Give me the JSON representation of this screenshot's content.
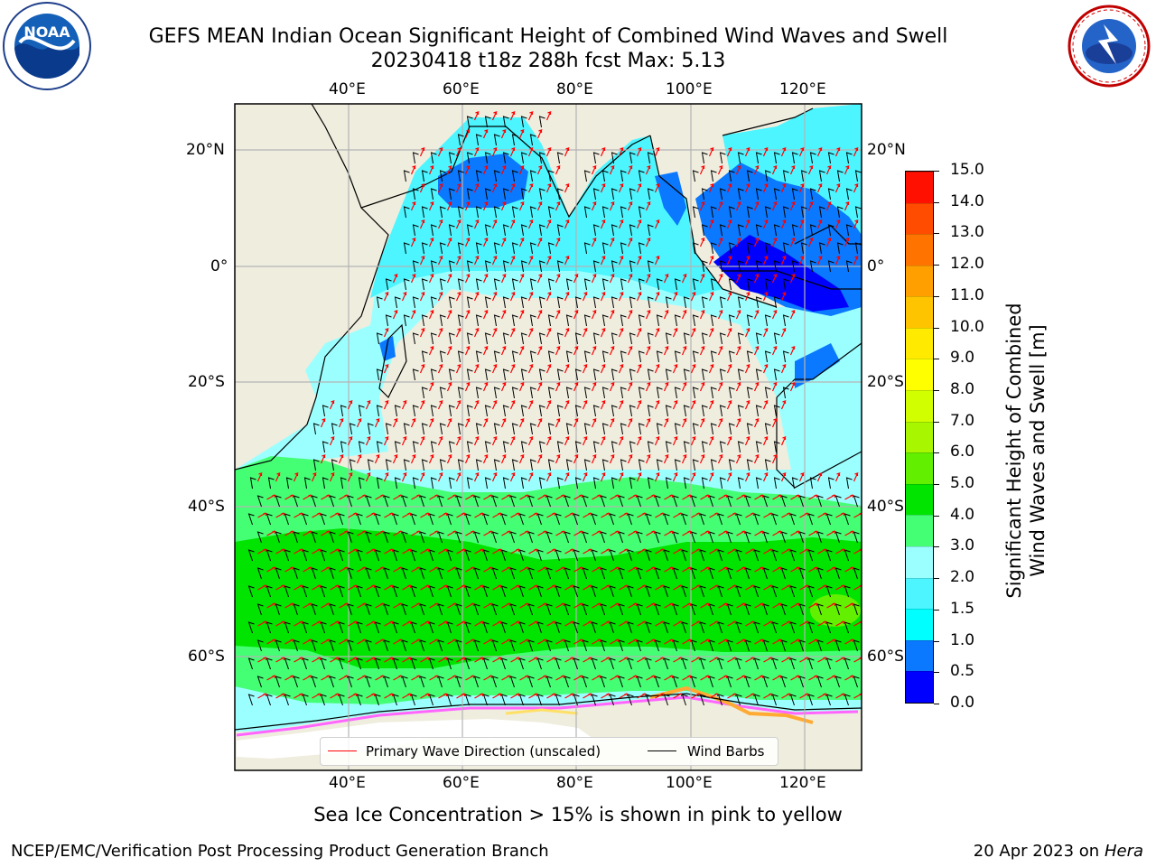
{
  "title": {
    "line1": "GEFS MEAN Indian Ocean Significant Height of Combined Wind Waves and Swell",
    "line2": "20230418 t18z 288h fcst   Max: 5.13"
  },
  "logos": {
    "left": {
      "name": "noaa-logo",
      "text": "NOAA",
      "ring_text": "NATIONAL OCEANIC AND ATMOSPHERIC ADMINISTRATION · U.S. DEPARTMENT OF COMMERCE"
    },
    "right": {
      "name": "nws-logo",
      "ring_text": "NATIONAL WEATHER SERVICE"
    }
  },
  "map": {
    "lon_labels_top": [
      "40°E",
      "60°E",
      "80°E",
      "100°E",
      "120°E"
    ],
    "lon_labels_bottom": [
      "40°E",
      "60°E",
      "80°E",
      "100°E",
      "120°E"
    ],
    "lat_labels_left": [
      "20°N",
      "0°",
      "20°S",
      "40°S",
      "60°S"
    ],
    "lat_labels_right": [
      "20°N",
      "0°",
      "20°S",
      "40°S",
      "60°S"
    ],
    "colors": {
      "land": "#efedde",
      "grid": "#b4b4b4",
      "wave_arrow": "#ff0000",
      "wind_barb": "#000000"
    }
  },
  "legend": {
    "items": [
      {
        "label": "Primary Wave Direction (unscaled)",
        "color": "#ff0000"
      },
      {
        "label": "Wind Barbs",
        "color": "#000000"
      }
    ]
  },
  "colorbar": {
    "label_line1": "Significant Height of Combined",
    "label_line2": "Wind Waves and Swell [m]",
    "ticks": [
      "0.0",
      "0.5",
      "1.0",
      "1.5",
      "2.0",
      "3.0",
      "4.0",
      "5.0",
      "6.0",
      "7.0",
      "8.0",
      "9.0",
      "10.0",
      "11.0",
      "12.0",
      "13.0",
      "14.0",
      "15.0"
    ],
    "colors": [
      "#0000ff",
      "#0a78ff",
      "#00ffff",
      "#4cf5ff",
      "#9cffff",
      "#44ff74",
      "#00e400",
      "#62f000",
      "#a8f600",
      "#d2ff00",
      "#ffff00",
      "#ffea00",
      "#ffc400",
      "#ffa000",
      "#ff7400",
      "#ff4c00",
      "#ff1000"
    ]
  },
  "ice_note": "Sea Ice Concentration > 15% is shown in pink to yellow",
  "footer": {
    "left": "NCEP/EMC/Verification Post Processing Product Generation Branch",
    "right_prefix": "20 Apr 2023 on ",
    "right_italic": "Hera"
  }
}
